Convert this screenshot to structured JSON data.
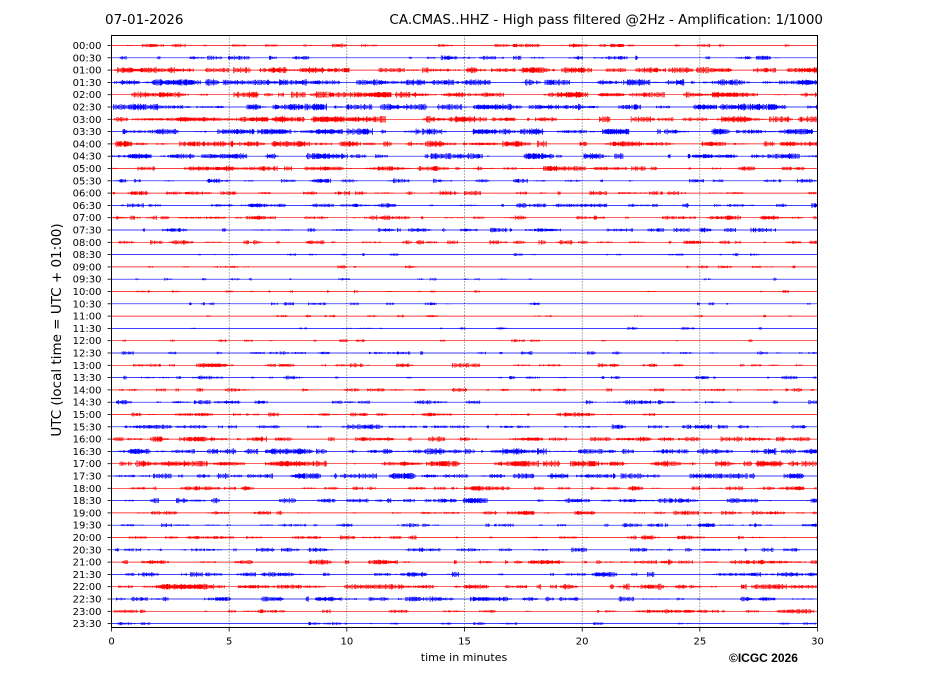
{
  "header": {
    "date": "07-01-2026",
    "title": "CA.CMAS..HHZ - High pass filtered @2Hz - Amplification: 1/1000"
  },
  "footer": {
    "copyright": "©ICGC 2026"
  },
  "colors": {
    "red": "#ff0000",
    "blue": "#0000ff",
    "grid": "#000000"
  },
  "chart_data": {
    "type": "line",
    "title": "CA.CMAS..HHZ - High pass filtered @2Hz - Amplification: 1/1000",
    "xlabel": "time in minutes",
    "ylabel": "UTC (local time = UTC + 01:00)",
    "xlim": [
      0,
      30
    ],
    "xticks": [
      0,
      5,
      10,
      15,
      20,
      25,
      30
    ],
    "grid": true,
    "rows": [
      "00:00",
      "00:30",
      "01:00",
      "01:30",
      "02:00",
      "02:30",
      "03:00",
      "03:30",
      "04:00",
      "04:30",
      "05:00",
      "05:30",
      "06:00",
      "06:30",
      "07:00",
      "07:30",
      "08:00",
      "08:30",
      "09:00",
      "09:30",
      "10:00",
      "10:30",
      "11:00",
      "11:30",
      "12:00",
      "12:30",
      "13:00",
      "13:30",
      "14:00",
      "14:30",
      "15:00",
      "15:30",
      "16:00",
      "16:30",
      "17:00",
      "17:30",
      "18:00",
      "18:30",
      "19:00",
      "19:30",
      "20:00",
      "20:30",
      "21:00",
      "21:30",
      "22:00",
      "22:30",
      "23:00",
      "23:30"
    ],
    "row_colors": [
      "red",
      "blue"
    ],
    "activity": [
      0.35,
      0.45,
      0.9,
      0.95,
      0.85,
      1.0,
      0.95,
      0.9,
      0.9,
      0.85,
      0.7,
      0.45,
      0.5,
      0.5,
      0.55,
      0.5,
      0.5,
      0.15,
      0.1,
      0.1,
      0.1,
      0.15,
      0.1,
      0.1,
      0.1,
      0.3,
      0.45,
      0.3,
      0.35,
      0.45,
      0.5,
      0.55,
      0.65,
      0.9,
      0.95,
      0.8,
      0.55,
      0.65,
      0.45,
      0.45,
      0.4,
      0.55,
      0.6,
      0.6,
      0.85,
      0.65,
      0.45,
      0.2
    ]
  }
}
